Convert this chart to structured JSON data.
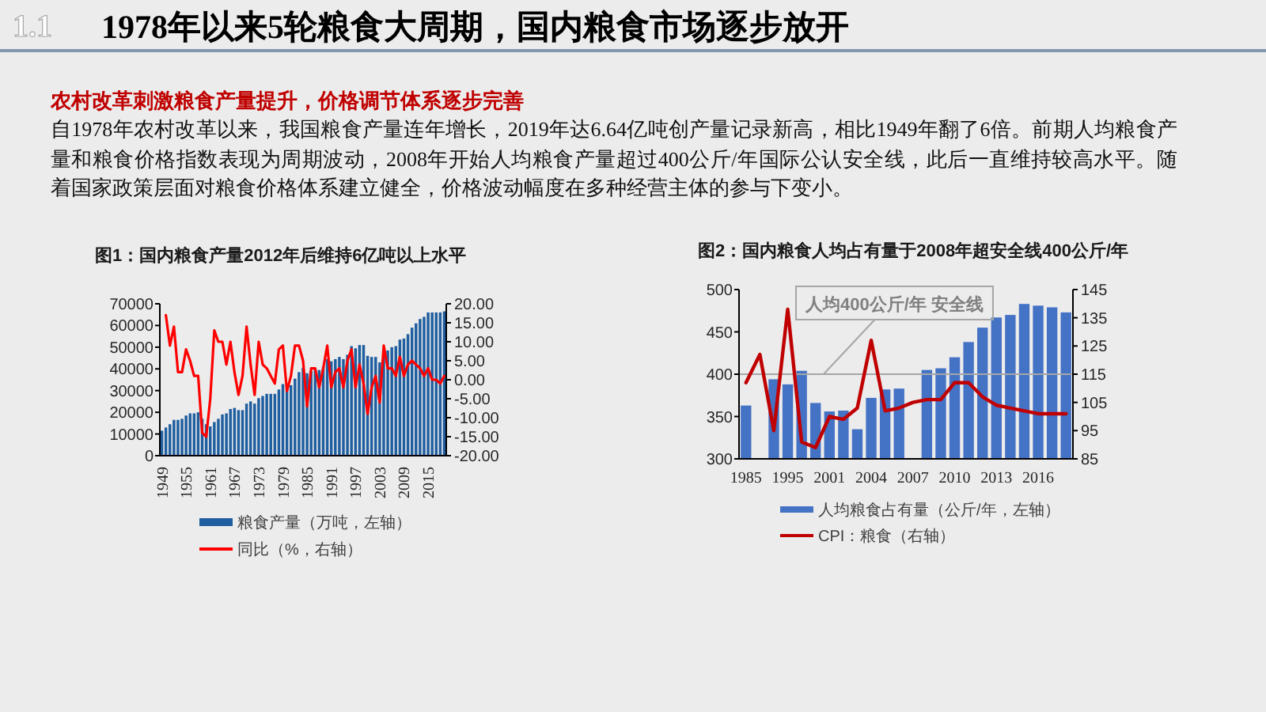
{
  "chart_data": [
    {
      "type": "other",
      "title": "1978年以来5轮粮食大周期，国内粮食市场逐步放开",
      "subtitle": "农村改革刺激粮食产量提升，价格调节体系逐步完善",
      "annotations": [
        "1.1",
        "自1978年农村改革以来，我国粮食产量连年增长，2019年达6.64亿吨创产量记录新高，相比1949年翻了6倍。前期人均粮食产量和粮食价格指数表现为周期波动，2008年开始人均粮食产量超过400公斤/年国际公认安全线，此后一直维持较高水平。随着国家政策层面对粮食价格体系建立健全，价格波动幅度在多种经营主体的参与下变小。"
      ]
    },
    {
      "type": "bar",
      "title": "图1：国内粮食产量2012年后维持6亿吨以上水平",
      "categories": [
        "1949",
        null,
        null,
        null,
        null,
        null,
        "1955",
        null,
        null,
        null,
        null,
        null,
        "1961",
        null,
        null,
        null,
        null,
        null,
        "1967",
        null,
        null,
        null,
        null,
        null,
        "1973",
        null,
        null,
        null,
        null,
        null,
        "1979",
        null,
        null,
        null,
        null,
        null,
        "1985",
        null,
        null,
        null,
        null,
        null,
        "1991",
        null,
        null,
        null,
        null,
        null,
        "1997",
        null,
        null,
        null,
        null,
        null,
        "2003",
        null,
        null,
        null,
        null,
        null,
        "2009",
        null,
        null,
        null,
        null,
        null,
        "2015",
        null,
        null,
        null,
        null
      ],
      "series": [
        {
          "name": "粮食产量（万吨，左轴）",
          "color": "#1f5e9f",
          "values": [
            11500,
            13000,
            14500,
            16500,
            16500,
            17000,
            18500,
            19500,
            19500,
            20000,
            17000,
            14500,
            13500,
            15500,
            17000,
            19000,
            19500,
            21500,
            22000,
            21000,
            21000,
            24000,
            25000,
            24000,
            26500,
            27500,
            28500,
            28500,
            28500,
            30500,
            33000,
            32000,
            32500,
            35500,
            38500,
            40500,
            38000,
            39000,
            40500,
            39500,
            41000,
            44500,
            43500,
            44500,
            45500,
            44500,
            46500,
            50500,
            49500,
            51000,
            51000,
            46000,
            45500,
            45500,
            43000,
            47000,
            48500,
            50000,
            50500,
            53500,
            54000,
            56000,
            59000,
            61000,
            63000,
            64000,
            66000,
            66000,
            66000,
            66000,
            66500
          ]
        },
        {
          "name": "同比（%，右轴）",
          "type": "line",
          "axis": "y2",
          "color": "#ff0000",
          "values": [
            null,
            17,
            9,
            14,
            2,
            2,
            8,
            5,
            1,
            1,
            -14,
            -15,
            -5,
            13,
            10,
            10,
            4,
            10,
            2,
            -4,
            1,
            14,
            4,
            -4,
            10,
            4,
            3,
            1,
            -1,
            8,
            9,
            -3,
            1,
            9,
            9,
            5,
            -7,
            3,
            3,
            -2,
            3,
            9,
            -2,
            2,
            3,
            -2,
            5,
            8,
            -2,
            4,
            -1,
            -9,
            -2,
            1,
            -6,
            9,
            3,
            3,
            1,
            6,
            1,
            4,
            5,
            4,
            3,
            1,
            3,
            0,
            0,
            -1,
            1
          ]
        }
      ],
      "ylim": [
        0,
        70000
      ],
      "yticks": [
        0,
        10000,
        20000,
        30000,
        40000,
        50000,
        60000,
        70000
      ],
      "y2lim": [
        -20,
        20
      ],
      "y2ticks": [
        {
          "value": -20,
          "label": "-20.00"
        },
        {
          "value": -15,
          "label": "-15.00"
        },
        {
          "value": -10,
          "label": "-10.00"
        },
        {
          "value": -5,
          "label": "-5.00"
        },
        {
          "value": 0,
          "label": "0.00"
        },
        {
          "value": 5,
          "label": "5.00"
        },
        {
          "value": 10,
          "label": "10.00"
        },
        {
          "value": 15,
          "label": "15.00"
        },
        {
          "value": 20,
          "label": "20.00"
        }
      ],
      "legend": "bottom"
    },
    {
      "type": "bar",
      "title": "图2：国内粮食人均占有量于2008年超安全线400公斤/年",
      "categories": [
        "1985",
        null,
        null,
        "1995",
        null,
        null,
        "2001",
        null,
        null,
        "2004",
        null,
        null,
        "2007",
        null,
        null,
        "2010",
        null,
        null,
        "2013",
        null,
        null,
        "2016",
        null,
        null
      ],
      "series": [
        {
          "name": "人均粮食占有量（公斤/年，左轴）",
          "color": "#4472c4",
          "values": [
            363,
            null,
            394,
            388,
            404,
            366,
            356,
            357,
            335,
            372,
            382,
            383,
            null,
            405,
            407,
            420,
            438,
            455,
            467,
            470,
            483,
            481,
            479,
            473
          ]
        },
        {
          "name": "CPI：粮食（右轴）",
          "type": "line",
          "axis": "y2",
          "color": "#c00000",
          "values": [
            112,
            122,
            95,
            138,
            91,
            89,
            100,
            99,
            103,
            127,
            102,
            103,
            105,
            106,
            106,
            112,
            112,
            107,
            104,
            103,
            102,
            101,
            101,
            101
          ]
        }
      ],
      "ylim": [
        300,
        500
      ],
      "yticks": [
        300,
        350,
        400,
        450,
        500
      ],
      "y2lim": [
        85,
        145
      ],
      "y2ticks": [
        85,
        95,
        105,
        115,
        125,
        135,
        145
      ],
      "ref_lines": [
        {
          "axis": "y",
          "value": 400,
          "label": "人均400公斤/年 安全线",
          "color": "#a6a6a6"
        }
      ],
      "legend": "bottom"
    }
  ]
}
